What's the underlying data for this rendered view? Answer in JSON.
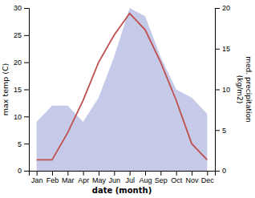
{
  "chart_data": {
    "type": "line",
    "xlabel": "date (month)",
    "ylabel": "max temp (C)",
    "y2label": "med. precipitation\n(kg/m2)",
    "categories": [
      "Jan",
      "Feb",
      "Mar",
      "Apr",
      "May",
      "Jun",
      "Jul",
      "Aug",
      "Sep",
      "Oct",
      "Nov",
      "Dec"
    ],
    "series": [
      {
        "type": "area",
        "axis": "y2",
        "color": "#c5cae9",
        "values": [
          6,
          8,
          8,
          6,
          9,
          14,
          20,
          19,
          14,
          10,
          9,
          7
        ]
      },
      {
        "type": "line",
        "color": "#c0504d",
        "values": [
          2,
          2,
          7,
          13,
          20,
          25,
          29,
          26,
          20,
          13,
          5,
          2
        ]
      }
    ],
    "ylim": [
      0,
      30
    ],
    "yticks": [
      0,
      5,
      10,
      15,
      20,
      25,
      30
    ],
    "y2lim": [
      0,
      20
    ],
    "y2ticks": [
      0,
      5,
      10,
      15,
      20
    ]
  }
}
